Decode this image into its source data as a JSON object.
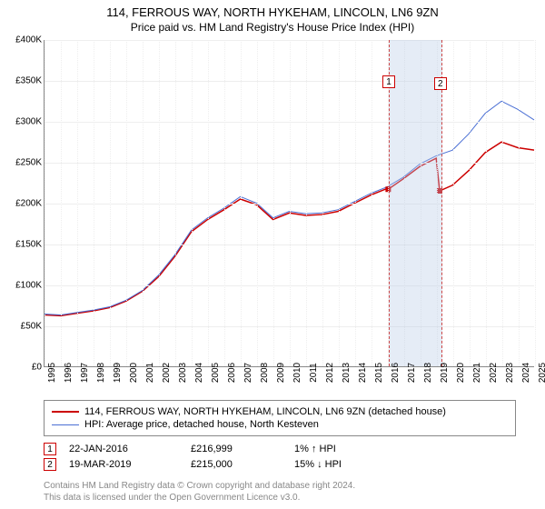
{
  "title": "114, FERROUS WAY, NORTH HYKEHAM, LINCOLN, LN6 9ZN",
  "subtitle": "Price paid vs. HM Land Registry's House Price Index (HPI)",
  "chart": {
    "type": "line",
    "background_color": "#ffffff",
    "grid_color": "#eeeeee",
    "axis_color": "#888888",
    "band_fill": "rgba(180,200,230,0.35)",
    "band_border": "#cc4444",
    "x_min_year": 1995,
    "x_max_year": 2025,
    "y_min": 0,
    "y_max": 400000,
    "y_tick_step": 50000,
    "y_tick_labels": [
      "£0",
      "£50K",
      "£100K",
      "£150K",
      "£200K",
      "£250K",
      "£300K",
      "£350K",
      "£400K"
    ],
    "x_ticks": [
      1995,
      1996,
      1997,
      1998,
      1999,
      2000,
      2001,
      2002,
      2003,
      2004,
      2005,
      2006,
      2007,
      2008,
      2009,
      2010,
      2011,
      2012,
      2013,
      2014,
      2015,
      2016,
      2017,
      2018,
      2019,
      2020,
      2021,
      2022,
      2023,
      2024,
      2025
    ],
    "series": [
      {
        "name": "property",
        "label": "114, FERROUS WAY, NORTH HYKEHAM, LINCOLN, LN6 9ZN (detached house)",
        "color": "#cc0000",
        "line_width": 1.5,
        "points": [
          [
            1995,
            63000
          ],
          [
            1996,
            62000
          ],
          [
            1997,
            65000
          ],
          [
            1998,
            68000
          ],
          [
            1999,
            72000
          ],
          [
            2000,
            80000
          ],
          [
            2001,
            92000
          ],
          [
            2002,
            110000
          ],
          [
            2003,
            135000
          ],
          [
            2004,
            165000
          ],
          [
            2005,
            180000
          ],
          [
            2006,
            192000
          ],
          [
            2007,
            205000
          ],
          [
            2008,
            198000
          ],
          [
            2009,
            180000
          ],
          [
            2010,
            188000
          ],
          [
            2011,
            185000
          ],
          [
            2012,
            186000
          ],
          [
            2013,
            190000
          ],
          [
            2014,
            200000
          ],
          [
            2015,
            210000
          ],
          [
            2016,
            218000
          ],
          [
            2016.06,
            216999
          ],
          [
            2017,
            230000
          ],
          [
            2018,
            245000
          ],
          [
            2019,
            255000
          ],
          [
            2019.21,
            215000
          ],
          [
            2020,
            222000
          ],
          [
            2021,
            240000
          ],
          [
            2022,
            262000
          ],
          [
            2023,
            275000
          ],
          [
            2024,
            268000
          ],
          [
            2025,
            265000
          ]
        ]
      },
      {
        "name": "hpi",
        "label": "HPI: Average price, detached house, North Kesteven",
        "color": "#4a6fd4",
        "line_width": 1,
        "points": [
          [
            1995,
            64000
          ],
          [
            1996,
            63000
          ],
          [
            1997,
            66000
          ],
          [
            1998,
            69000
          ],
          [
            1999,
            73000
          ],
          [
            2000,
            81000
          ],
          [
            2001,
            93000
          ],
          [
            2002,
            112000
          ],
          [
            2003,
            137000
          ],
          [
            2004,
            167000
          ],
          [
            2005,
            182000
          ],
          [
            2006,
            194000
          ],
          [
            2007,
            208000
          ],
          [
            2008,
            200000
          ],
          [
            2009,
            182000
          ],
          [
            2010,
            190000
          ],
          [
            2011,
            187000
          ],
          [
            2012,
            188000
          ],
          [
            2013,
            192000
          ],
          [
            2014,
            202000
          ],
          [
            2015,
            212000
          ],
          [
            2016,
            220000
          ],
          [
            2017,
            232000
          ],
          [
            2018,
            248000
          ],
          [
            2019,
            258000
          ],
          [
            2020,
            265000
          ],
          [
            2021,
            285000
          ],
          [
            2022,
            310000
          ],
          [
            2023,
            325000
          ],
          [
            2024,
            315000
          ],
          [
            2025,
            302000
          ]
        ]
      }
    ],
    "sale_markers": [
      {
        "id": 1,
        "x": 2016.06,
        "y": 216999,
        "box_y_offset": -126
      },
      {
        "id": 2,
        "x": 2019.21,
        "y": 215000,
        "box_y_offset": -126
      }
    ]
  },
  "legend": {
    "items": [
      {
        "color": "#cc0000",
        "width": 2,
        "label_key": "chart.series.0.label"
      },
      {
        "color": "#4a6fd4",
        "width": 1,
        "label_key": "chart.series.1.label"
      }
    ]
  },
  "data_rows": [
    {
      "marker": "1",
      "date": "22-JAN-2016",
      "price": "£216,999",
      "pct": "1% ↑ HPI"
    },
    {
      "marker": "2",
      "date": "19-MAR-2019",
      "price": "£215,000",
      "pct": "15% ↓ HPI"
    }
  ],
  "credit_line1": "Contains HM Land Registry data © Crown copyright and database right 2024.",
  "credit_line2": "This data is licensed under the Open Government Licence v3.0.",
  "typography": {
    "title_fontsize": 13,
    "subtitle_fontsize": 12,
    "axis_fontsize": 10,
    "legend_fontsize": 11,
    "credit_fontsize": 10,
    "credit_color": "#888888"
  }
}
